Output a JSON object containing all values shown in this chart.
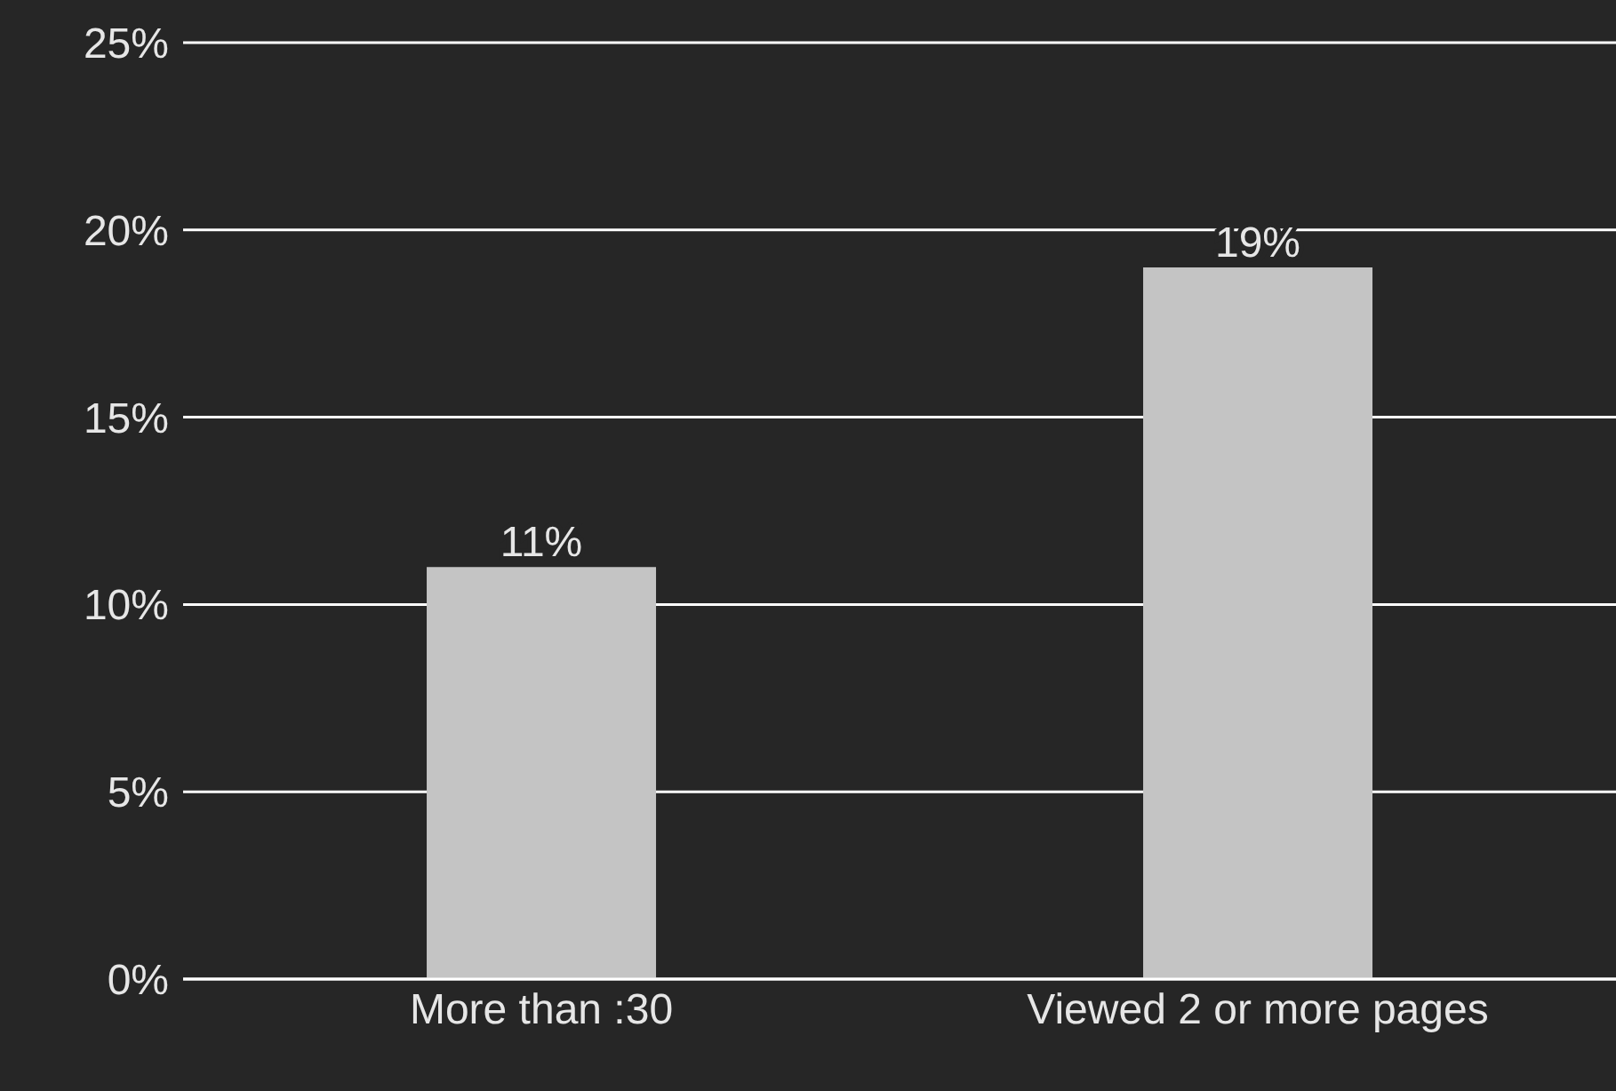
{
  "chart_data": {
    "type": "bar",
    "categories": [
      "More than :30",
      "Viewed 2 or more pages"
    ],
    "values": [
      11,
      19
    ],
    "color": "#c4c4c4",
    "value_labels": [
      "11%",
      "19%"
    ],
    "ylim": [
      0,
      25
    ],
    "yticks": [
      {
        "value": 0,
        "label": "0%"
      },
      {
        "value": 5,
        "label": "5%"
      },
      {
        "value": 10,
        "label": "10%"
      },
      {
        "value": 15,
        "label": "15%"
      },
      {
        "value": 20,
        "label": "20%"
      },
      {
        "value": 25,
        "label": "25%"
      }
    ],
    "grid": "y",
    "legend": false
  }
}
